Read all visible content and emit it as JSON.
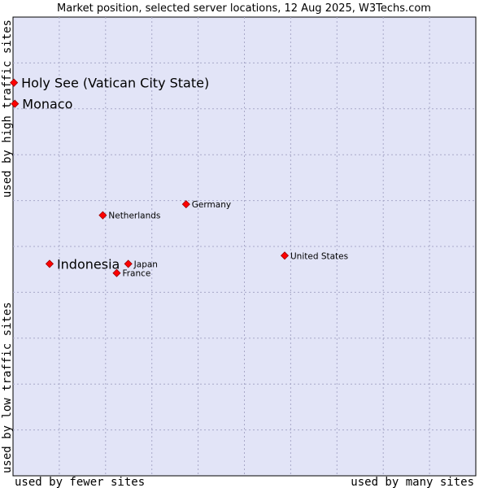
{
  "chart_data": {
    "type": "scatter",
    "title": "Market position, selected server locations, 12 Aug 2025, W3Techs.com",
    "xlabel_left": "used by fewer sites",
    "xlabel_right": "used by many sites",
    "ylabel_bottom": "used by low traffic sites",
    "ylabel_top": "used by high traffic sites",
    "grid": true,
    "xlim": [
      0,
      10
    ],
    "ylim": [
      0,
      10
    ],
    "colors": {
      "plot_bg": "#e2e4f7",
      "grid": "#a8a8c8",
      "marker": "#ff0000",
      "marker_edge": "#9a0000"
    },
    "points": [
      {
        "name": "Holy See (Vatican City State)",
        "x": 0.02,
        "y": 8.57,
        "highlight": true
      },
      {
        "name": "Monaco",
        "x": 0.04,
        "y": 8.11,
        "highlight": true
      },
      {
        "name": "Netherlands",
        "x": 1.94,
        "y": 5.68,
        "highlight": false
      },
      {
        "name": "Germany",
        "x": 3.74,
        "y": 5.92,
        "highlight": false
      },
      {
        "name": "Indonesia",
        "x": 0.79,
        "y": 4.62,
        "highlight": true
      },
      {
        "name": "Japan",
        "x": 2.49,
        "y": 4.62,
        "highlight": false
      },
      {
        "name": "France",
        "x": 2.24,
        "y": 4.42,
        "highlight": false
      },
      {
        "name": "United States",
        "x": 5.87,
        "y": 4.8,
        "highlight": false
      }
    ]
  }
}
